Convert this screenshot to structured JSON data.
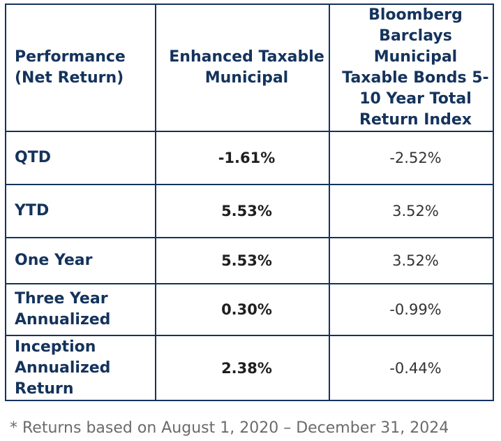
{
  "table": {
    "headers": {
      "label": "Performance (Net Return)",
      "fund": "Enhanced Taxable Municipal",
      "index": "Bloomberg Barclays Municipal Taxable Bonds 5-10 Year Total Return Index"
    },
    "rows": [
      {
        "label": "QTD",
        "fund": "-1.61%",
        "index": "-2.52%"
      },
      {
        "label": "YTD",
        "fund": "5.53%",
        "index": "3.52%"
      },
      {
        "label": "One Year",
        "fund": "5.53%",
        "index": "3.52%"
      },
      {
        "label": "Three Year Annualized",
        "fund": "0.30%",
        "index": "-0.99%"
      },
      {
        "label": "Inception Annualized Return",
        "fund": "2.38%",
        "index": "-0.44%"
      }
    ]
  },
  "footnote": "* Returns based on August 1, 2020 – December 31, 2024"
}
